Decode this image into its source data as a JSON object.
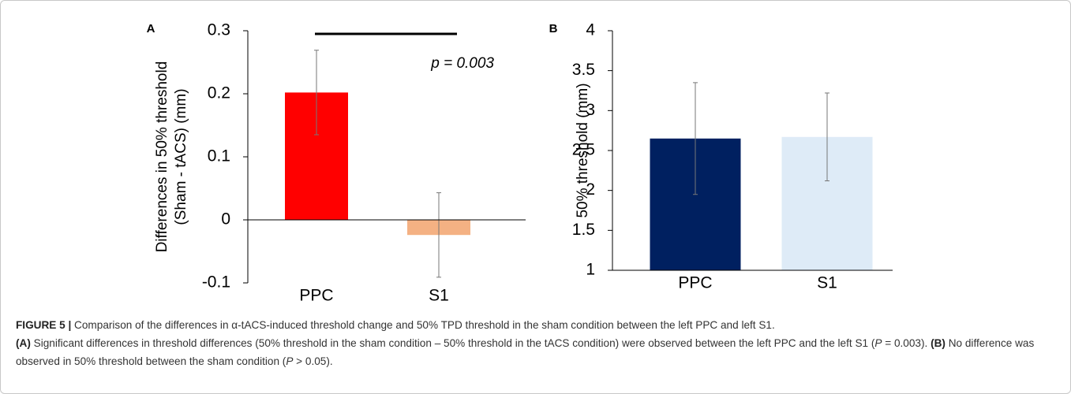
{
  "chart_data": [
    {
      "type": "bar",
      "panel": "A",
      "ylabel": [
        "Differences in 50% threshold",
        "(Sham - tACS) (mm)"
      ],
      "categories": [
        "PPC",
        "S1"
      ],
      "values": [
        0.202,
        -0.024
      ],
      "errors": [
        0.067,
        0.067
      ],
      "colors": [
        "#ff0000",
        "#f4b183"
      ],
      "ylim": [
        -0.1,
        0.3
      ],
      "yticks": [
        -0.1,
        0,
        0.1,
        0.2,
        0.3
      ],
      "annotation": "p = 0.003"
    },
    {
      "type": "bar",
      "panel": "B",
      "ylabel": [
        "50% threshold (mm)"
      ],
      "categories": [
        "PPC",
        "S1"
      ],
      "values": [
        2.65,
        2.67
      ],
      "errors": [
        0.7,
        0.55
      ],
      "colors": [
        "#002060",
        "#deebf7"
      ],
      "ylim": [
        1,
        4
      ],
      "yticks": [
        1,
        1.5,
        2,
        2.5,
        3,
        3.5,
        4
      ]
    }
  ],
  "caption": {
    "figure": "FIGURE 5 |",
    "intro": " Comparison of the differences in α-tACS-induced threshold change and 50% TPD threshold in the sham condition between the left PPC and left S1.",
    "a_label": "(A)",
    "a_text_1": " Significant differences in threshold differences (50% threshold in the sham condition – 50% threshold in the tACS condition) were observed between the left PPC and the left S1 (",
    "a_p": "P",
    "a_text_2": " = 0.003).",
    "b_label": "(B)",
    "b_text_1": " No difference was observed in 50% threshold between the sham condition (",
    "b_p": "P",
    "b_text_2": " > 0.05)."
  }
}
